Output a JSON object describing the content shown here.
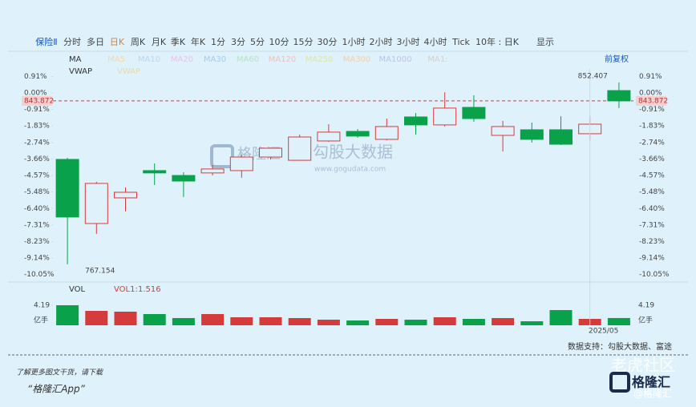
{
  "toolbar": {
    "items": [
      "保险Ⅱ",
      "分时",
      "多日",
      "日K",
      "周K",
      "月K",
      "季K",
      "年K",
      "1分",
      "3分",
      "5分",
      "10分",
      "15分",
      "30分",
      "1小时",
      "2小时",
      "3小时",
      "4小时",
      "Tick",
      "10年 : 日K",
      "显示"
    ],
    "selected": 3
  },
  "indicators": {
    "ma_label": "MA",
    "ma_items": [
      "MA5",
      "MA10",
      "MA20",
      "MA30",
      "MA60",
      "MA120",
      "MA250",
      "MA300",
      "MA1000",
      "MA1:"
    ],
    "adjust": "前复权",
    "vwap_label": "VWAP",
    "vwap_item": "VWAP",
    "vol_label": "VOL",
    "vol_item": "VOL1:"
  },
  "chart_data": {
    "type": "candlestick",
    "categories": [
      null,
      null,
      null,
      null,
      null,
      null,
      null,
      null,
      null,
      null,
      null,
      null,
      null,
      null,
      null,
      null,
      null,
      null,
      "2025/05",
      null
    ],
    "open": [
      -3.68,
      -7.23,
      -5.81,
      -4.3,
      -4.57,
      -4.43,
      -4.3,
      -3.55,
      -3.73,
      -2.66,
      -2.13,
      -2.57,
      -1.33,
      -1.77,
      -0.8,
      -2.35,
      -2.04,
      -2.04,
      -2.26,
      0.13
    ],
    "close": [
      -6.87,
      -5.01,
      -5.5,
      -4.43,
      -4.88,
      -4.21,
      -3.55,
      -3.06,
      -2.44,
      -2.17,
      -2.39,
      -1.86,
      -1.77,
      -0.84,
      -1.42,
      -1.86,
      -2.57,
      -2.84,
      -1.73,
      -0.44
    ],
    "high": [
      -3.59,
      -4.92,
      -5.23,
      -3.9,
      -4.39,
      -3.99,
      -3.41,
      -3.02,
      -2.31,
      -1.73,
      -2.0,
      -1.42,
      -1.11,
      0.04,
      -0.13,
      -1.55,
      -1.64,
      -1.29,
      -1.29,
      0.58
    ],
    "low": [
      -9.49,
      -7.8,
      -6.56,
      -5.1,
      -5.76,
      -4.57,
      -4.7,
      -3.68,
      -3.73,
      -2.71,
      -2.48,
      -2.62,
      -2.31,
      -1.86,
      -1.6,
      -3.24,
      -2.75,
      -2.88,
      -2.62,
      -0.84
    ],
    "up_color": "#d63b3b",
    "down_color": "#0aa14b",
    "ylim": [
      -10.38,
      1.33
    ],
    "yticks": [
      {
        "value": 0.91,
        "label": "0.91%"
      },
      {
        "value": 0,
        "label": "0.00%"
      },
      {
        "value": -0.91,
        "label": "-0.91%"
      },
      {
        "value": -1.83,
        "label": "-1.83%"
      },
      {
        "value": -2.74,
        "label": "-2.74%"
      },
      {
        "value": -3.66,
        "label": "-3.66%"
      },
      {
        "value": -4.57,
        "label": "-4.57%"
      },
      {
        "value": -5.48,
        "label": "-5.48%"
      },
      {
        "value": -6.4,
        "label": "-6.40%"
      },
      {
        "value": -7.31,
        "label": "-7.31%"
      },
      {
        "value": -8.23,
        "label": "-8.23%"
      },
      {
        "value": -9.14,
        "label": "-9.14%"
      },
      {
        "value": -10.05,
        "label": "-10.05%"
      }
    ],
    "last_price": {
      "value": -0.44,
      "label": "843.872"
    },
    "high_label": "852.407",
    "low_label": "767.154",
    "volume": {
      "values": [
        4.19,
        3.02,
        2.85,
        2.35,
        1.51,
        2.35,
        1.68,
        1.68,
        1.51,
        1.17,
        1.01,
        1.34,
        1.17,
        1.68,
        1.34,
        1.51,
        0.84,
        3.18,
        1.34,
        1.516
      ],
      "value_labels": [
        null,
        null,
        null,
        null,
        null,
        null,
        null,
        null,
        null,
        null,
        null,
        null,
        null,
        null,
        null,
        null,
        null,
        null,
        null,
        "1.516"
      ],
      "ylim": [
        0,
        4.19
      ],
      "yticks": [
        4.19
      ],
      "unit": "亿手"
    }
  },
  "footer": {
    "source": "数据支持：勾股大数据、富途",
    "promo": "了解更多图文干货，请下载",
    "app": "“格隆汇App”"
  },
  "watermark": {
    "name": "勾股大数据",
    "url": "www.gogudata.com",
    "brand": "格隆汇",
    "brand2": "老虎社区",
    "handle": "@格隆汇"
  }
}
